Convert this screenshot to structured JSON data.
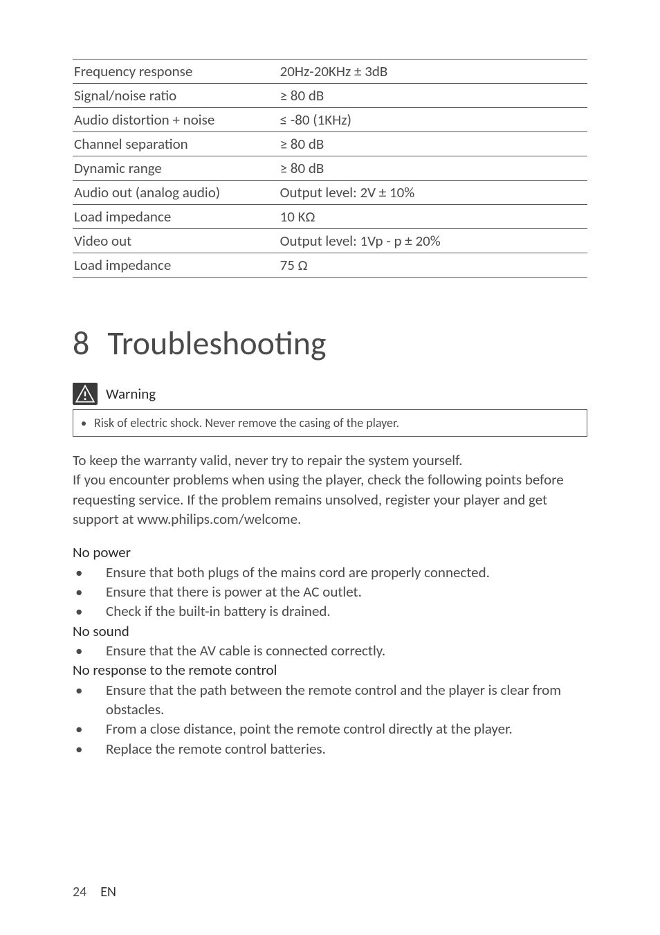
{
  "specs": {
    "rows": [
      {
        "label": "Frequency response",
        "value": "20Hz-20KHz ± 3dB"
      },
      {
        "label": "Signal/noise ratio",
        "value": "≥ 80 dB"
      },
      {
        "label": "Audio distortion + noise",
        "value": "≤ -80 (1KHz)"
      },
      {
        "label": "Channel separation",
        "value": "≥ 80 dB"
      },
      {
        "label": "Dynamic range",
        "value": "≥ 80 dB"
      },
      {
        "label": "Audio out (analog audio)",
        "value": "Output level: 2V ± 10%"
      },
      {
        "label": "Load impedance",
        "value": "10 KΩ"
      },
      {
        "label": "Video out",
        "value": "Output level: 1Vp - p ± 20%"
      },
      {
        "label": "Load impedance",
        "value": "75 Ω"
      }
    ]
  },
  "section": {
    "number": "8",
    "title": "Troubleshooting"
  },
  "warning": {
    "label": "Warning",
    "items": [
      "Risk of electric shock. Never remove the casing of the player."
    ]
  },
  "intro": "To keep the warranty valid, never try to repair the system yourself.\nIf you encounter problems when using the player, check the following points before requesting service. If the problem remains unsolved, register your player and get support at www.philips.com/welcome.",
  "troubleshoot": [
    {
      "heading": "No power",
      "items": [
        "Ensure that both plugs of the mains cord are properly connected.",
        "Ensure that there is power at the AC outlet.",
        "Check if the built-in battery is drained."
      ]
    },
    {
      "heading": "No sound",
      "items": [
        "Ensure that the AV cable is connected correctly."
      ]
    },
    {
      "heading": "No response to the remote control",
      "items": [
        "Ensure that the path between the remote control and the player is clear from obstacles.",
        "From a close distance, point the remote control directly at the player.",
        "Replace the remote control batteries."
      ]
    }
  ],
  "footer": {
    "page": "24",
    "lang": "EN"
  }
}
